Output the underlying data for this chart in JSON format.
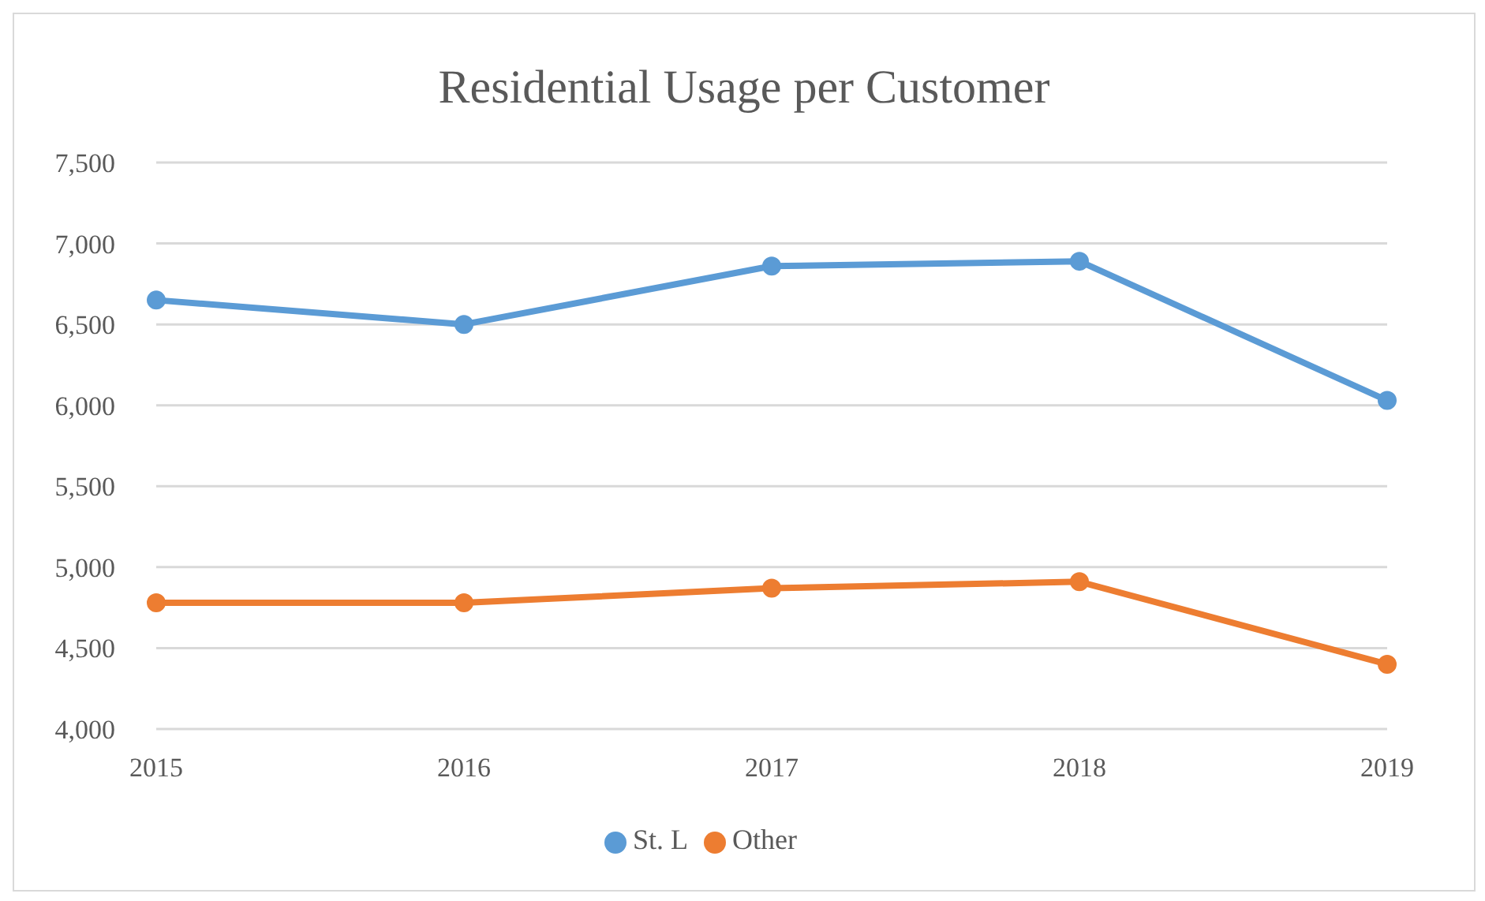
{
  "chart_data": {
    "type": "line",
    "title": "Residential Usage per Customer",
    "categories": [
      "2015",
      "2016",
      "2017",
      "2018",
      "2019"
    ],
    "series": [
      {
        "name": "St. L",
        "color": "#5b9bd5",
        "values": [
          6650,
          6500,
          6860,
          6890,
          6030
        ]
      },
      {
        "name": "Other",
        "color": "#ed7d31",
        "values": [
          4780,
          4780,
          4870,
          4910,
          4400
        ]
      }
    ],
    "ylim": [
      4000,
      7500
    ],
    "yticks": [
      {
        "value": 4000,
        "label": "4,000"
      },
      {
        "value": 4500,
        "label": "4,500"
      },
      {
        "value": 5000,
        "label": "5,000"
      },
      {
        "value": 5500,
        "label": "5,500"
      },
      {
        "value": 6000,
        "label": "6,000"
      },
      {
        "value": 6500,
        "label": "6,500"
      },
      {
        "value": 7000,
        "label": "7,000"
      },
      {
        "value": 7500,
        "label": "7,500"
      }
    ],
    "grid": "y",
    "legend": "bottom",
    "marker": "circle",
    "line_style": "solid"
  }
}
